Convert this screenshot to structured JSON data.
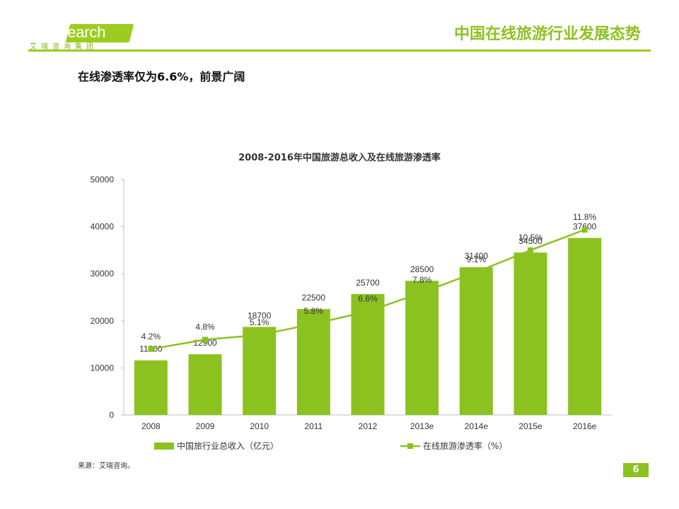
{
  "header": {
    "logo_text": "iResearch",
    "logo_subtitle": "艾瑞咨询集团",
    "title": "中国在线旅游行业发展态势"
  },
  "slide": {
    "subtitle": "在线渗透率仅为6.6%，前景广阔",
    "source": "来源：艾瑞咨询。",
    "page_number": "6"
  },
  "colors": {
    "accent": "#8cc21f",
    "bar": "#8cc21f",
    "line": "#8cc21f",
    "axis": "#bfbfbf",
    "text": "#333333"
  },
  "chart_data": {
    "type": "bar",
    "title": "2008-2016年中国旅游总收入及在线旅游渗透率",
    "categories": [
      "2008",
      "2009",
      "2010",
      "2011",
      "2012",
      "2013e",
      "2014e",
      "2015e",
      "2016e"
    ],
    "ylim": [
      0,
      50000
    ],
    "yticks": [
      0,
      10000,
      20000,
      30000,
      40000,
      50000
    ],
    "y2lim": [
      0,
      15
    ],
    "series": [
      {
        "name": "中国旅行业总收入（亿元）",
        "type": "bar",
        "axis": "left",
        "values": [
          11600,
          12900,
          18700,
          22500,
          25700,
          28500,
          31400,
          34500,
          37600
        ],
        "labels": [
          "11600",
          "12900",
          "18700",
          "22500",
          "25700",
          "28500",
          "31400",
          "34500",
          "37600"
        ]
      },
      {
        "name": "在线旅游渗透率（%）",
        "type": "line",
        "axis": "right",
        "values": [
          4.2,
          4.8,
          5.1,
          5.8,
          6.6,
          7.8,
          9.1,
          10.5,
          11.8
        ],
        "labels": [
          "4.2%",
          "4.8%",
          "5.1%",
          "5.8%",
          "6.6%",
          "7.8%",
          "9.1%",
          "10.5%",
          "11.8%"
        ]
      }
    ],
    "legend_position": "bottom"
  }
}
